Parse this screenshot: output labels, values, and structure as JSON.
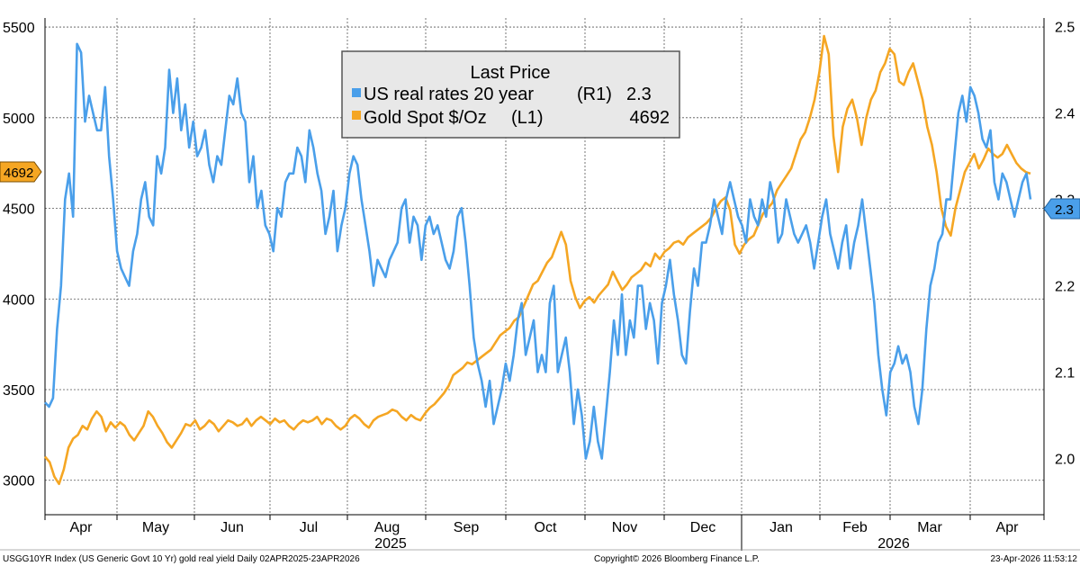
{
  "chart_data": {
    "type": "line",
    "legend": {
      "title": "Last Price",
      "placement": "top-center",
      "entries": [
        {
          "name": "US real rates 20 year",
          "axis": "(R1)",
          "value": "2.3",
          "color": "#4a9fea"
        },
        {
          "name": "Gold Spot $/Oz",
          "axis": "(L1)",
          "value": "4692",
          "color": "#f5a623"
        }
      ]
    },
    "left_axis": {
      "ticks": [
        "3000",
        "3500",
        "4000",
        "4500",
        "5000",
        "5500"
      ],
      "range": [
        2810,
        5550
      ]
    },
    "right_axis": {
      "ticks": [
        "2.0",
        "2.1",
        "2.2",
        "2.3",
        "2.4",
        "2.5"
      ],
      "range": [
        1.935,
        2.51
      ]
    },
    "last_value_badges": {
      "left": "4692",
      "right": "2.3"
    },
    "x_axis": {
      "months": [
        "Apr",
        "May",
        "Jun",
        "Jul",
        "Aug",
        "Sep",
        "Oct",
        "Nov",
        "Dec",
        "Jan",
        "Feb",
        "Mar",
        "Apr"
      ],
      "years": [
        "2025",
        "2026"
      ]
    },
    "grid": true,
    "series": [
      {
        "name": "Gold Spot $/Oz",
        "axis": "left",
        "color": "#f5a623",
        "values": [
          3130,
          3100,
          3020,
          2980,
          3060,
          3180,
          3230,
          3250,
          3300,
          3280,
          3340,
          3380,
          3350,
          3270,
          3320,
          3290,
          3320,
          3300,
          3250,
          3220,
          3260,
          3300,
          3380,
          3350,
          3300,
          3260,
          3210,
          3180,
          3220,
          3260,
          3310,
          3300,
          3330,
          3280,
          3300,
          3330,
          3310,
          3270,
          3300,
          3330,
          3320,
          3300,
          3310,
          3340,
          3300,
          3330,
          3350,
          3330,
          3310,
          3340,
          3320,
          3330,
          3300,
          3280,
          3310,
          3330,
          3320,
          3330,
          3350,
          3310,
          3340,
          3330,
          3300,
          3280,
          3300,
          3340,
          3360,
          3340,
          3310,
          3290,
          3330,
          3350,
          3360,
          3370,
          3390,
          3380,
          3350,
          3330,
          3360,
          3340,
          3330,
          3370,
          3400,
          3420,
          3450,
          3480,
          3520,
          3580,
          3600,
          3620,
          3650,
          3640,
          3660,
          3680,
          3700,
          3720,
          3760,
          3800,
          3820,
          3840,
          3880,
          3900,
          3960,
          4020,
          4080,
          4100,
          4150,
          4200,
          4230,
          4300,
          4370,
          4300,
          4100,
          4010,
          3950,
          3990,
          4010,
          3980,
          4020,
          4050,
          4080,
          4150,
          4100,
          4050,
          4080,
          4120,
          4140,
          4160,
          4200,
          4180,
          4250,
          4220,
          4260,
          4280,
          4310,
          4320,
          4300,
          4340,
          4360,
          4380,
          4400,
          4420,
          4450,
          4500,
          4540,
          4560,
          4490,
          4300,
          4250,
          4300,
          4330,
          4350,
          4410,
          4470,
          4500,
          4530,
          4600,
          4640,
          4680,
          4720,
          4800,
          4880,
          4920,
          5000,
          5100,
          5250,
          5450,
          5350,
          4900,
          4700,
          4950,
          5050,
          5100,
          5000,
          4850,
          5000,
          5100,
          5150,
          5250,
          5300,
          5380,
          5350,
          5200,
          5180,
          5250,
          5300,
          5200,
          5100,
          4950,
          4850,
          4700,
          4500,
          4400,
          4350,
          4500,
          4600,
          4700,
          4750,
          4800,
          4720,
          4770,
          4830,
          4800,
          4780,
          4800,
          4850,
          4800,
          4750,
          4720,
          4700,
          4692
        ]
      },
      {
        "name": "US real rates 20 year",
        "axis": "right",
        "color": "#4a9fea",
        "values": [
          2.065,
          2.06,
          2.07,
          2.15,
          2.2,
          2.3,
          2.33,
          2.28,
          2.48,
          2.47,
          2.39,
          2.42,
          2.4,
          2.38,
          2.38,
          2.43,
          2.35,
          2.3,
          2.24,
          2.22,
          2.21,
          2.2,
          2.24,
          2.26,
          2.3,
          2.32,
          2.28,
          2.27,
          2.35,
          2.33,
          2.36,
          2.45,
          2.4,
          2.44,
          2.38,
          2.41,
          2.36,
          2.39,
          2.35,
          2.36,
          2.38,
          2.34,
          2.32,
          2.35,
          2.34,
          2.38,
          2.42,
          2.41,
          2.44,
          2.4,
          2.39,
          2.32,
          2.35,
          2.29,
          2.31,
          2.27,
          2.26,
          2.24,
          2.29,
          2.28,
          2.32,
          2.33,
          2.33,
          2.36,
          2.35,
          2.32,
          2.38,
          2.36,
          2.33,
          2.31,
          2.26,
          2.28,
          2.31,
          2.24,
          2.27,
          2.29,
          2.33,
          2.35,
          2.34,
          2.3,
          2.27,
          2.24,
          2.2,
          2.23,
          2.22,
          2.21,
          2.23,
          2.24,
          2.25,
          2.29,
          2.3,
          2.25,
          2.28,
          2.27,
          2.23,
          2.27,
          2.28,
          2.26,
          2.27,
          2.25,
          2.23,
          2.22,
          2.24,
          2.28,
          2.29,
          2.25,
          2.2,
          2.14,
          2.11,
          2.09,
          2.06,
          2.09,
          2.04,
          2.06,
          2.08,
          2.11,
          2.09,
          2.12,
          2.16,
          2.18,
          2.12,
          2.14,
          2.16,
          2.1,
          2.12,
          2.1,
          2.18,
          2.2,
          2.1,
          2.12,
          2.14,
          2.1,
          2.04,
          2.08,
          2.05,
          2.0,
          2.02,
          2.06,
          2.02,
          2.0,
          2.05,
          2.1,
          2.16,
          2.12,
          2.19,
          2.12,
          2.16,
          2.14,
          2.2,
          2.2,
          2.15,
          2.18,
          2.16,
          2.11,
          2.18,
          2.2,
          2.23,
          2.19,
          2.16,
          2.12,
          2.11,
          2.17,
          2.22,
          2.2,
          2.25,
          2.25,
          2.27,
          2.3,
          2.28,
          2.26,
          2.3,
          2.32,
          2.3,
          2.28,
          2.27,
          2.25,
          2.3,
          2.28,
          2.27,
          2.3,
          2.28,
          2.32,
          2.3,
          2.25,
          2.26,
          2.3,
          2.28,
          2.26,
          2.25,
          2.26,
          2.27,
          2.25,
          2.22,
          2.25,
          2.28,
          2.3,
          2.26,
          2.24,
          2.22,
          2.25,
          2.27,
          2.22,
          2.25,
          2.27,
          2.3,
          2.26,
          2.22,
          2.18,
          2.12,
          2.08,
          2.05,
          2.1,
          2.11,
          2.13,
          2.11,
          2.12,
          2.1,
          2.06,
          2.04,
          2.08,
          2.15,
          2.2,
          2.22,
          2.25,
          2.26,
          2.3,
          2.3,
          2.35,
          2.4,
          2.42,
          2.39,
          2.43,
          2.42,
          2.4,
          2.37,
          2.36,
          2.38,
          2.32,
          2.3,
          2.33,
          2.32,
          2.3,
          2.28,
          2.3,
          2.32,
          2.33,
          2.3
        ]
      }
    ]
  },
  "footer": {
    "left": "USGG10YR Index (US Generic Govt 10 Yr) gold real yield Daily 02APR2025-23APR2026",
    "center": "Copyright© 2026 Bloomberg Finance L.P.",
    "right": "23-Apr-2026 11:53:12"
  }
}
